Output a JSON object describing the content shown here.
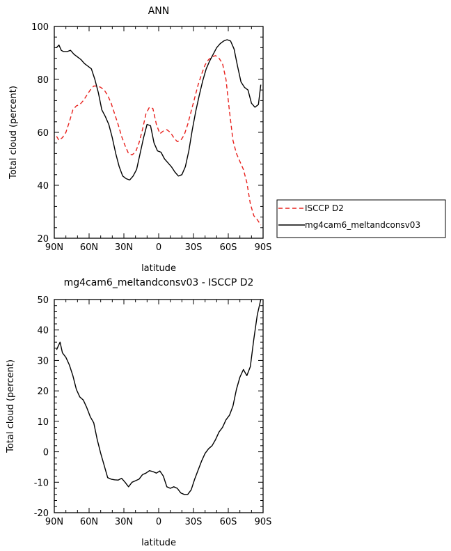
{
  "chart_data": [
    {
      "type": "line",
      "title": "ANN",
      "xlabel": "latitude",
      "ylabel": "Total cloud (percent)",
      "xlim": [
        -90,
        90
      ],
      "ylim": [
        20,
        100
      ],
      "x_ticks": [
        -90,
        -60,
        -30,
        0,
        30,
        60,
        90
      ],
      "x_tick_labels": [
        "90N",
        "60N",
        "30N",
        "0",
        "30S",
        "60S",
        "90S"
      ],
      "y_ticks": [
        20,
        40,
        60,
        80,
        100
      ],
      "y_tick_labels": [
        "20",
        "40",
        "60",
        "80",
        "100"
      ],
      "legend_position": "right",
      "series": [
        {
          "name": "ISCCP D2",
          "color": "#e8201c",
          "dash": "dashed",
          "x": [
            -88,
            -86,
            -83,
            -80,
            -77,
            -74,
            -71,
            -68,
            -65,
            -62,
            -59,
            -56,
            -53,
            -50,
            -47,
            -44,
            -41,
            -38,
            -35,
            -32,
            -29,
            -26,
            -23,
            -20,
            -17,
            -14,
            -11,
            -8,
            -5,
            -2,
            1,
            4,
            7,
            10,
            13,
            16,
            19,
            22,
            25,
            28,
            31,
            34,
            37,
            40,
            43,
            46,
            49,
            52,
            55,
            58,
            61,
            64,
            67,
            70,
            73,
            76,
            79,
            82,
            85,
            88
          ],
          "y": [
            58.5,
            57,
            58,
            60,
            64,
            68.5,
            70,
            70.5,
            72,
            74,
            76,
            77.5,
            77.5,
            77,
            76,
            74,
            71,
            67,
            63,
            58.5,
            55,
            52,
            51.5,
            52.5,
            56,
            61,
            67,
            69.5,
            69,
            63,
            59.5,
            60.5,
            61,
            60,
            58,
            56.5,
            57,
            59,
            63,
            68,
            73,
            78,
            82,
            85.5,
            87.5,
            88.5,
            89,
            88,
            86,
            80,
            68,
            57,
            52,
            49,
            46,
            41,
            33,
            28.5,
            27,
            25
          ]
        },
        {
          "name": "mg4cam6_meltandconsv03",
          "color": "#000000",
          "dash": "solid",
          "x": [
            -88,
            -86,
            -84,
            -82,
            -79,
            -76,
            -73,
            -70,
            -67,
            -64,
            -61,
            -58,
            -55,
            -52,
            -49,
            -46,
            -43,
            -40,
            -37,
            -34,
            -31,
            -28,
            -25,
            -22,
            -19,
            -16,
            -13,
            -10,
            -7,
            -4,
            -1,
            2,
            5,
            8,
            11,
            14,
            17,
            20,
            23,
            26,
            29,
            32,
            35,
            38,
            41,
            44,
            47,
            50,
            53,
            56,
            59,
            62,
            65,
            68,
            71,
            74,
            77,
            80,
            83,
            86,
            88
          ],
          "y": [
            92,
            93,
            91,
            90.5,
            90.5,
            91,
            89.5,
            88.5,
            87.5,
            86,
            85,
            84,
            80,
            75,
            68.5,
            66,
            63,
            58,
            52,
            47,
            43.5,
            42.5,
            42,
            43.5,
            46,
            52,
            58,
            63,
            62.5,
            56,
            53,
            52.5,
            50,
            48.5,
            47,
            45,
            43.5,
            44,
            47,
            53,
            61,
            68,
            74,
            79.5,
            84,
            87,
            89.5,
            92,
            93.5,
            94.5,
            95,
            94.5,
            91.5,
            85,
            79,
            77,
            76,
            71,
            69.5,
            70.5,
            78
          ]
        }
      ]
    },
    {
      "type": "line",
      "title": "mg4cam6_meltandconsv03 - ISCCP D2",
      "xlabel": "latitude",
      "ylabel": "Total cloud (percent)",
      "xlim": [
        -90,
        90
      ],
      "ylim": [
        -20,
        50
      ],
      "x_ticks": [
        -90,
        -60,
        -30,
        0,
        30,
        60,
        90
      ],
      "x_tick_labels": [
        "90N",
        "60N",
        "30N",
        "0",
        "30S",
        "60S",
        "90S"
      ],
      "y_ticks": [
        -20,
        -10,
        0,
        10,
        20,
        30,
        40,
        50
      ],
      "y_tick_labels": [
        "-20",
        "-10",
        "0",
        "10",
        "20",
        "30",
        "40",
        "50"
      ],
      "series": [
        {
          "color": "#000000",
          "dash": "solid",
          "x": [
            -88,
            -85,
            -83,
            -80,
            -77,
            -74,
            -71,
            -68,
            -65,
            -62,
            -59,
            -56,
            -53,
            -50,
            -47,
            -44,
            -41,
            -38,
            -35,
            -32,
            -29,
            -26,
            -23,
            -20,
            -17,
            -14,
            -11,
            -8,
            -5,
            -2,
            1,
            4,
            7,
            10,
            13,
            16,
            19,
            22,
            25,
            28,
            31,
            34,
            37,
            40,
            43,
            46,
            49,
            52,
            55,
            58,
            61,
            64,
            67,
            70,
            73,
            76,
            79,
            82,
            85,
            88
          ],
          "y": [
            33.5,
            36,
            32.5,
            31,
            28.5,
            25,
            20.5,
            18,
            17,
            14.5,
            11.5,
            9.5,
            4,
            -0.5,
            -4.5,
            -8.5,
            -9,
            -9.2,
            -9.3,
            -8.7,
            -10,
            -11.5,
            -10,
            -9.5,
            -9,
            -7.5,
            -7,
            -6.2,
            -6.5,
            -7,
            -6.3,
            -8,
            -11.5,
            -12,
            -11.5,
            -12,
            -13.5,
            -14,
            -14,
            -12.5,
            -9,
            -6,
            -3,
            -0.5,
            1,
            2,
            4,
            6.5,
            8,
            10.5,
            12,
            15,
            20.5,
            24.5,
            27,
            25,
            28,
            37,
            45,
            50
          ]
        }
      ]
    }
  ]
}
